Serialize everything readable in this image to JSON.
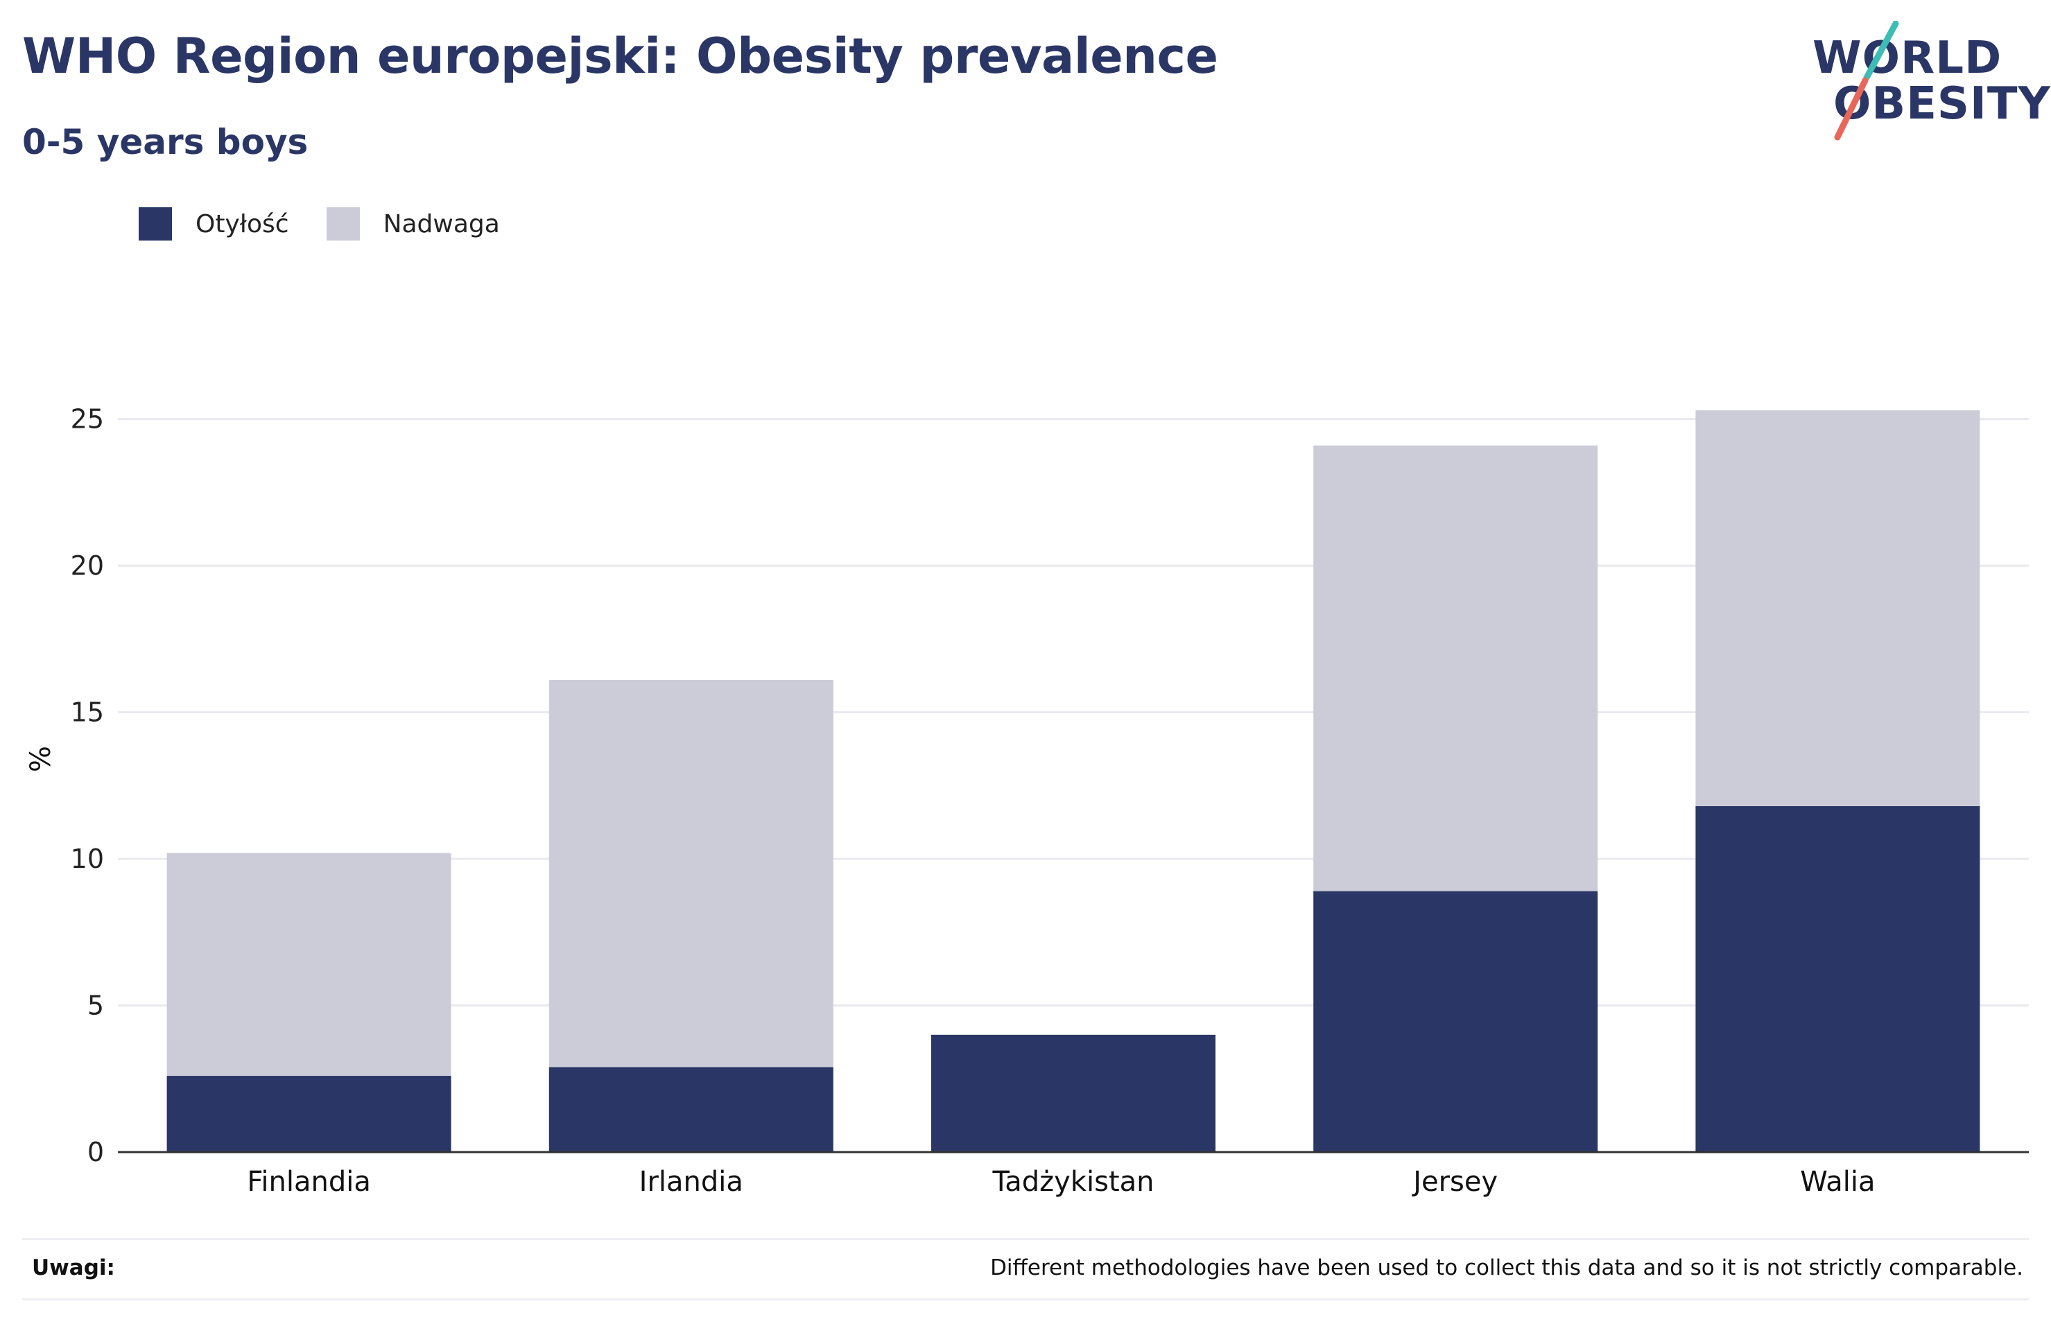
{
  "header": {
    "title": "WHO Region europejski: Obesity prevalence",
    "subtitle": "0-5 years boys"
  },
  "logo": {
    "line1": "WORLD",
    "line2": "OBESITY",
    "slash_colors": [
      "#3dbdb6",
      "#e8675a"
    ]
  },
  "colors": {
    "obesity": "#2a3665",
    "overweight": "#cbccd8",
    "grid": "#e9e9ef",
    "axis": "#333333",
    "title": "#2a3665"
  },
  "notes": {
    "label": "Uwagi:",
    "text": "Different methodologies have been used to collect this data and so it is not strictly comparable."
  },
  "chart_data": {
    "type": "bar",
    "stacked": true,
    "title": "WHO Region europejski: Obesity prevalence",
    "subtitle": "0-5 years boys",
    "xlabel": "",
    "ylabel": "%",
    "ylim": [
      0,
      27
    ],
    "yticks": [
      0,
      5,
      10,
      15,
      20,
      25
    ],
    "grid": true,
    "legend_position": "top-left",
    "categories": [
      "Finlandia",
      "Irlandia",
      "Tadżykistan",
      "Jersey",
      "Walia"
    ],
    "series": [
      {
        "name": "Otyłość",
        "values": [
          2.6,
          2.9,
          4.0,
          8.9,
          11.8
        ]
      },
      {
        "name": "Nadwaga",
        "values": [
          7.6,
          13.2,
          0,
          15.2,
          13.5
        ]
      }
    ]
  }
}
